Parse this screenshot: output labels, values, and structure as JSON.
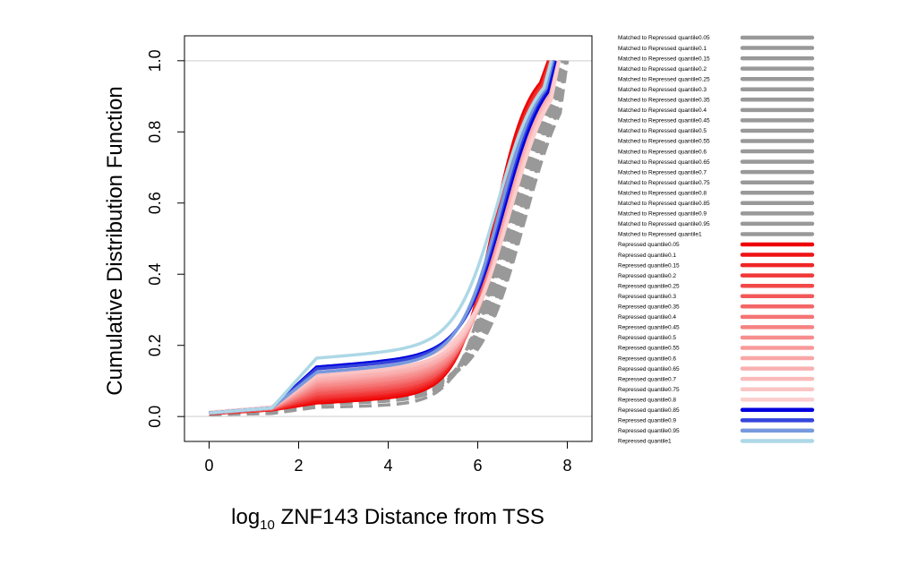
{
  "chart_data": {
    "type": "line",
    "title": "",
    "xlabel_prefix": "log",
    "xlabel_subscript": "10",
    "xlabel_rest": " ZNF143 Distance from TSS",
    "ylabel": "Cumulative Distribution Function",
    "xlim": [
      -0.55,
      8.55
    ],
    "ylim": [
      -0.07,
      1.07
    ],
    "x_ticks": [
      0,
      2,
      4,
      6,
      8
    ],
    "y_ticks": [
      0.0,
      0.2,
      0.4,
      0.6,
      0.8,
      1.0
    ],
    "x_tick_labels": [
      "0",
      "2",
      "4",
      "6",
      "8"
    ],
    "y_tick_labels": [
      "0.0",
      "0.2",
      "0.4",
      "0.6",
      "0.8",
      "1.0"
    ],
    "reference_lines": [
      0,
      1
    ],
    "legend_position": "right-outside",
    "series": [
      {
        "name": "Matched to Repressed quantile0.05",
        "color": "#999999",
        "dashed": true,
        "params": [
          0.005,
          0.005,
          0.02,
          6.45,
          0.42
        ]
      },
      {
        "name": "Matched to Repressed quantile0.1",
        "color": "#999999",
        "dashed": true,
        "params": [
          0.006,
          0.008,
          0.025,
          6.5,
          0.42
        ]
      },
      {
        "name": "Matched to Repressed quantile0.15",
        "color": "#999999",
        "dashed": true,
        "params": [
          0.006,
          0.01,
          0.025,
          6.55,
          0.43
        ]
      },
      {
        "name": "Matched to Repressed quantile0.2",
        "color": "#999999",
        "dashed": true,
        "params": [
          0.007,
          0.01,
          0.025,
          6.6,
          0.43
        ]
      },
      {
        "name": "Matched to Repressed quantile0.25",
        "color": "#999999",
        "dashed": true,
        "params": [
          0.007,
          0.012,
          0.03,
          6.62,
          0.44
        ]
      },
      {
        "name": "Matched to Repressed quantile0.3",
        "color": "#999999",
        "dashed": true,
        "params": [
          0.008,
          0.012,
          0.03,
          6.65,
          0.44
        ]
      },
      {
        "name": "Matched to Repressed quantile0.35",
        "color": "#999999",
        "dashed": true,
        "params": [
          0.008,
          0.012,
          0.03,
          6.68,
          0.44
        ]
      },
      {
        "name": "Matched to Repressed quantile0.4",
        "color": "#999999",
        "dashed": true,
        "params": [
          0.008,
          0.014,
          0.03,
          6.7,
          0.45
        ]
      },
      {
        "name": "Matched to Repressed quantile0.45",
        "color": "#999999",
        "dashed": true,
        "params": [
          0.008,
          0.014,
          0.03,
          6.72,
          0.45
        ]
      },
      {
        "name": "Matched to Repressed quantile0.5",
        "color": "#999999",
        "dashed": true,
        "params": [
          0.009,
          0.015,
          0.03,
          6.75,
          0.45
        ]
      },
      {
        "name": "Matched to Repressed quantile0.55",
        "color": "#999999",
        "dashed": true,
        "params": [
          0.009,
          0.015,
          0.03,
          6.78,
          0.46
        ]
      },
      {
        "name": "Matched to Repressed quantile0.6",
        "color": "#999999",
        "dashed": true,
        "params": [
          0.009,
          0.015,
          0.032,
          6.8,
          0.46
        ]
      },
      {
        "name": "Matched to Repressed quantile0.65",
        "color": "#999999",
        "dashed": true,
        "params": [
          0.01,
          0.016,
          0.032,
          6.82,
          0.46
        ]
      },
      {
        "name": "Matched to Repressed quantile0.7",
        "color": "#999999",
        "dashed": true,
        "params": [
          0.01,
          0.016,
          0.032,
          6.85,
          0.47
        ]
      },
      {
        "name": "Matched to Repressed quantile0.75",
        "color": "#999999",
        "dashed": true,
        "params": [
          0.01,
          0.016,
          0.032,
          6.88,
          0.47
        ]
      },
      {
        "name": "Matched to Repressed quantile0.8",
        "color": "#999999",
        "dashed": true,
        "params": [
          0.01,
          0.017,
          0.034,
          6.9,
          0.47
        ]
      },
      {
        "name": "Matched to Repressed quantile0.85",
        "color": "#999999",
        "dashed": true,
        "params": [
          0.011,
          0.017,
          0.034,
          6.93,
          0.48
        ]
      },
      {
        "name": "Matched to Repressed quantile0.9",
        "color": "#999999",
        "dashed": true,
        "params": [
          0.011,
          0.018,
          0.034,
          6.96,
          0.48
        ]
      },
      {
        "name": "Matched to Repressed quantile0.95",
        "color": "#999999",
        "dashed": true,
        "params": [
          0.011,
          0.018,
          0.035,
          7.0,
          0.48
        ]
      },
      {
        "name": "Matched to Repressed quantile1",
        "color": "#999999",
        "dashed": true,
        "params": [
          0.012,
          0.02,
          0.035,
          7.05,
          0.49
        ]
      },
      {
        "name": "Repressed quantile0.05",
        "color": "#ee0000",
        "dashed": false,
        "params": [
          0.008,
          0.015,
          0.02,
          6.35,
          0.4
        ]
      },
      {
        "name": "Repressed quantile0.1",
        "color": "#ef1414",
        "dashed": false,
        "params": [
          0.008,
          0.015,
          0.025,
          6.38,
          0.41
        ]
      },
      {
        "name": "Repressed quantile0.15",
        "color": "#f02626",
        "dashed": false,
        "params": [
          0.008,
          0.016,
          0.03,
          6.4,
          0.41
        ]
      },
      {
        "name": "Repressed quantile0.2",
        "color": "#f13838",
        "dashed": false,
        "params": [
          0.009,
          0.016,
          0.035,
          6.42,
          0.42
        ]
      },
      {
        "name": "Repressed quantile0.25",
        "color": "#f24848",
        "dashed": false,
        "params": [
          0.009,
          0.017,
          0.04,
          6.45,
          0.42
        ]
      },
      {
        "name": "Repressed quantile0.3",
        "color": "#f35858",
        "dashed": false,
        "params": [
          0.009,
          0.017,
          0.045,
          6.5,
          0.43
        ]
      },
      {
        "name": "Repressed quantile0.35",
        "color": "#f46666",
        "dashed": false,
        "params": [
          0.01,
          0.018,
          0.05,
          6.52,
          0.43
        ]
      },
      {
        "name": "Repressed quantile0.4",
        "color": "#f57474",
        "dashed": false,
        "params": [
          0.01,
          0.018,
          0.055,
          6.55,
          0.44
        ]
      },
      {
        "name": "Repressed quantile0.45",
        "color": "#f68282",
        "dashed": false,
        "params": [
          0.01,
          0.019,
          0.06,
          6.58,
          0.44
        ]
      },
      {
        "name": "Repressed quantile0.5",
        "color": "#f78e8e",
        "dashed": false,
        "params": [
          0.01,
          0.019,
          0.065,
          6.6,
          0.45
        ]
      },
      {
        "name": "Repressed quantile0.55",
        "color": "#f89a9a",
        "dashed": false,
        "params": [
          0.011,
          0.02,
          0.07,
          6.62,
          0.45
        ]
      },
      {
        "name": "Repressed quantile0.6",
        "color": "#f9a6a6",
        "dashed": false,
        "params": [
          0.011,
          0.02,
          0.075,
          6.65,
          0.46
        ]
      },
      {
        "name": "Repressed quantile0.65",
        "color": "#f9b0b0",
        "dashed": false,
        "params": [
          0.011,
          0.02,
          0.08,
          6.68,
          0.46
        ]
      },
      {
        "name": "Repressed quantile0.7",
        "color": "#fababa",
        "dashed": false,
        "params": [
          0.011,
          0.021,
          0.085,
          6.7,
          0.47
        ]
      },
      {
        "name": "Repressed quantile0.75",
        "color": "#fbc4c4",
        "dashed": false,
        "params": [
          0.012,
          0.021,
          0.09,
          6.72,
          0.47
        ]
      },
      {
        "name": "Repressed quantile0.8",
        "color": "#fccece",
        "dashed": false,
        "params": [
          0.012,
          0.022,
          0.1,
          6.75,
          0.48
        ]
      },
      {
        "name": "Repressed quantile0.85",
        "color": "#0000dd",
        "dashed": false,
        "params": [
          0.01,
          0.02,
          0.115,
          6.6,
          0.46
        ]
      },
      {
        "name": "Repressed quantile0.9",
        "color": "#3344dd",
        "dashed": false,
        "params": [
          0.01,
          0.02,
          0.11,
          6.55,
          0.45
        ]
      },
      {
        "name": "Repressed quantile0.95",
        "color": "#7799dd",
        "dashed": false,
        "params": [
          0.01,
          0.02,
          0.1,
          6.5,
          0.45
        ]
      },
      {
        "name": "Repressed quantile1",
        "color": "#add8e6",
        "dashed": false,
        "params": [
          0.01,
          0.02,
          0.14,
          6.45,
          0.46
        ]
      }
    ]
  }
}
